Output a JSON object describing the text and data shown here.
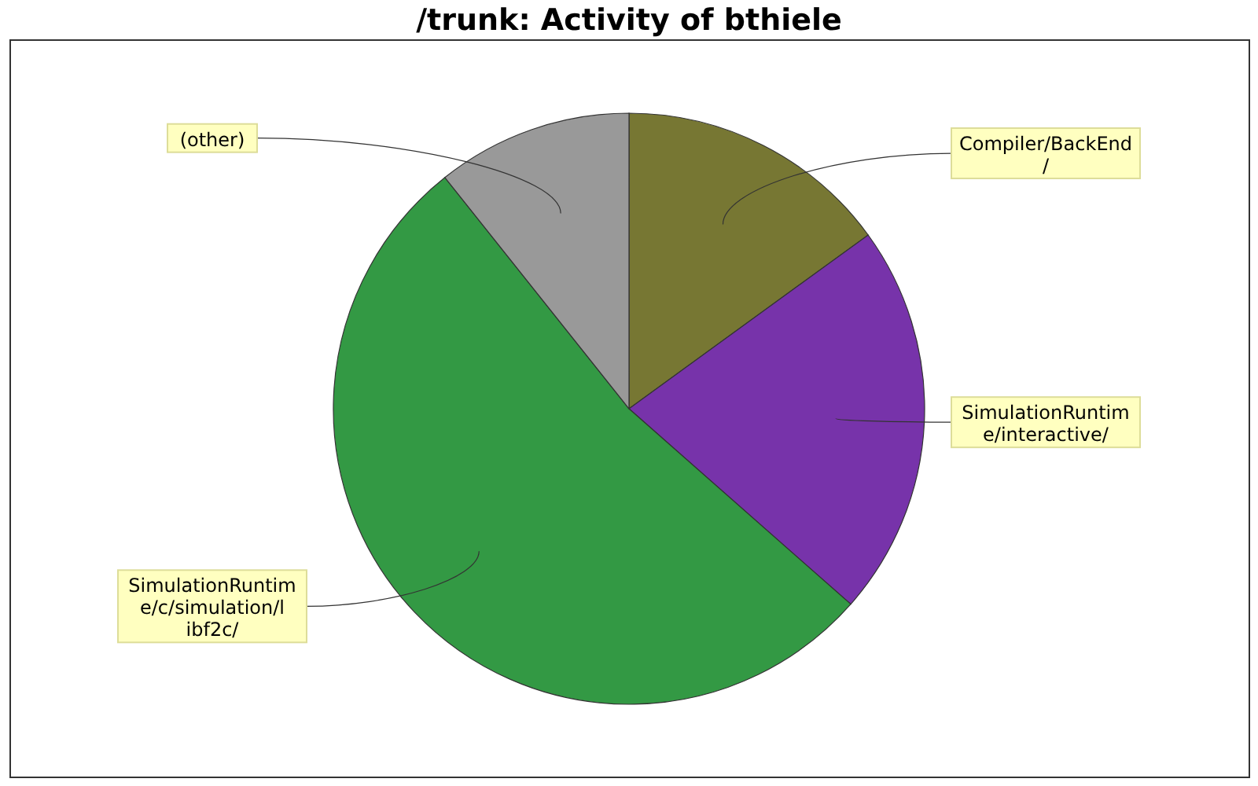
{
  "chart_data": {
    "type": "pie",
    "title": "/trunk: Activity of bthiele",
    "categories": [
      "Compiler/BackEnd/",
      "SimulationRuntime/interactive/",
      "SimulationRuntime/c/simulation/libf2c/",
      "(other)"
    ],
    "values": [
      15.0,
      21.5,
      52.8,
      10.7
    ],
    "colors": [
      "#777733",
      "#7733aa",
      "#339944",
      "#999999"
    ]
  }
}
